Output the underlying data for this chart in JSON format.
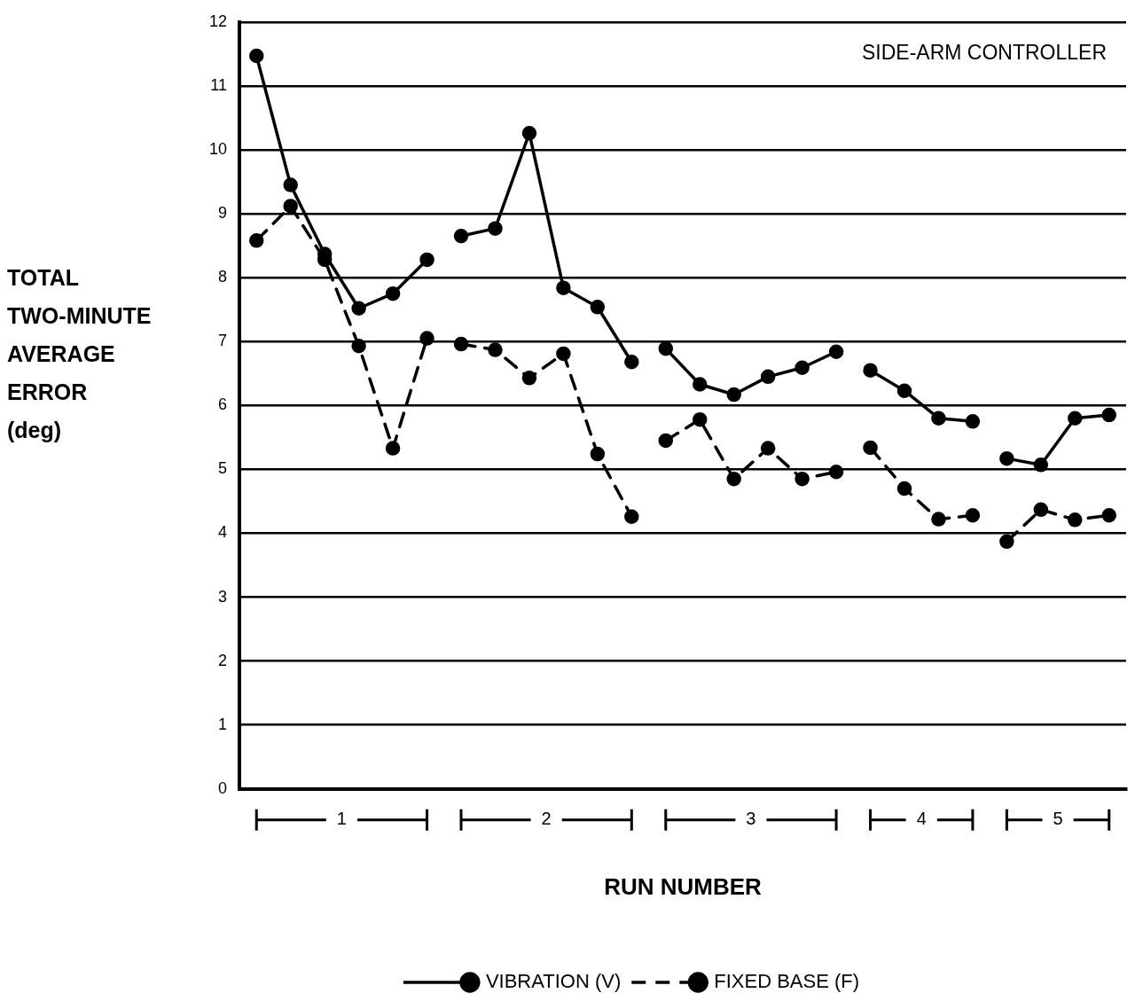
{
  "chart_data": {
    "type": "line",
    "title": "SIDE-ARM CONTROLLER",
    "xlabel": "RUN NUMBER",
    "ylabel": "TOTAL\nTWO-MINUTE\nAVERAGE\nERROR\n(deg)",
    "categories": [
      null,
      null,
      null,
      null,
      null,
      null,
      null,
      null,
      null,
      null,
      null,
      null,
      null,
      null,
      null,
      null,
      null,
      null,
      null,
      null,
      null,
      null,
      null,
      null,
      null,
      null
    ],
    "annotations": [
      "1",
      "2",
      "3",
      "4",
      "5"
    ],
    "series": [
      {
        "name": "VIBRATION (V)",
        "color": "#000000",
        "line_style": "solid",
        "values": [
          11.47,
          9.45,
          8.37,
          7.52,
          7.75,
          8.28,
          null,
          null,
          null,
          null,
          null,
          null,
          null,
          null,
          null,
          null,
          null,
          null,
          null,
          null,
          null,
          null,
          null,
          null,
          null,
          null
        ]
      },
      {
        "color": "#000000",
        "line_style": "solid",
        "values": [
          null,
          null,
          null,
          null,
          null,
          null,
          8.65,
          8.77,
          10.26,
          7.84,
          7.54,
          6.68,
          null,
          null,
          null,
          null,
          null,
          null,
          null,
          null,
          null,
          null,
          null,
          null,
          null,
          null
        ]
      },
      {
        "color": "#000000",
        "line_style": "solid",
        "values": [
          null,
          null,
          null,
          null,
          null,
          null,
          null,
          null,
          null,
          null,
          null,
          null,
          6.89,
          6.33,
          6.17,
          6.45,
          6.59,
          6.84,
          null,
          null,
          null,
          null,
          null,
          null,
          null,
          null
        ]
      },
      {
        "color": "#000000",
        "line_style": "solid",
        "values": [
          null,
          null,
          null,
          null,
          null,
          null,
          null,
          null,
          null,
          null,
          null,
          null,
          null,
          null,
          null,
          null,
          null,
          null,
          6.55,
          6.23,
          5.8,
          5.75,
          null,
          null,
          null,
          null
        ]
      },
      {
        "color": "#000000",
        "line_style": "solid",
        "values": [
          null,
          null,
          null,
          null,
          null,
          null,
          null,
          null,
          null,
          null,
          null,
          null,
          null,
          null,
          null,
          null,
          null,
          null,
          null,
          null,
          null,
          null,
          5.17,
          5.07,
          5.8,
          5.85
        ]
      },
      {
        "name": "FIXED BASE (F)",
        "color": "#000000",
        "line_style": "dashed",
        "values": [
          8.58,
          9.12,
          8.28,
          6.93,
          5.33,
          7.05,
          null,
          null,
          null,
          null,
          null,
          null,
          null,
          null,
          null,
          null,
          null,
          null,
          null,
          null,
          null,
          null,
          null,
          null,
          null,
          null
        ]
      },
      {
        "color": "#000000",
        "line_style": "dashed",
        "values": [
          null,
          null,
          null,
          null,
          null,
          null,
          6.96,
          6.87,
          6.43,
          6.81,
          5.24,
          4.26,
          null,
          null,
          null,
          null,
          null,
          null,
          null,
          null,
          null,
          null,
          null,
          null,
          null,
          null
        ]
      },
      {
        "color": "#000000",
        "line_style": "dashed",
        "values": [
          null,
          null,
          null,
          null,
          null,
          null,
          null,
          null,
          null,
          null,
          null,
          null,
          5.45,
          5.78,
          4.85,
          5.33,
          4.85,
          4.96,
          null,
          null,
          null,
          null,
          null,
          null,
          null,
          null
        ]
      },
      {
        "color": "#000000",
        "line_style": "dashed",
        "values": [
          null,
          null,
          null,
          null,
          null,
          null,
          null,
          null,
          null,
          null,
          null,
          null,
          null,
          null,
          null,
          null,
          null,
          null,
          5.34,
          4.7,
          4.22,
          4.28,
          null,
          null,
          null,
          null
        ]
      },
      {
        "color": "#000000",
        "line_style": "dashed",
        "values": [
          null,
          null,
          null,
          null,
          null,
          null,
          null,
          null,
          null,
          null,
          null,
          null,
          null,
          null,
          null,
          null,
          null,
          null,
          null,
          null,
          null,
          null,
          3.87,
          4.37,
          4.21,
          4.28
        ]
      }
    ],
    "ylim": [
      0,
      12
    ],
    "yticks": [
      0,
      1,
      2,
      3,
      4,
      5,
      6,
      7,
      8,
      9,
      10,
      11,
      12
    ],
    "grid": "y",
    "legend": "bottom",
    "marker": "circle"
  }
}
